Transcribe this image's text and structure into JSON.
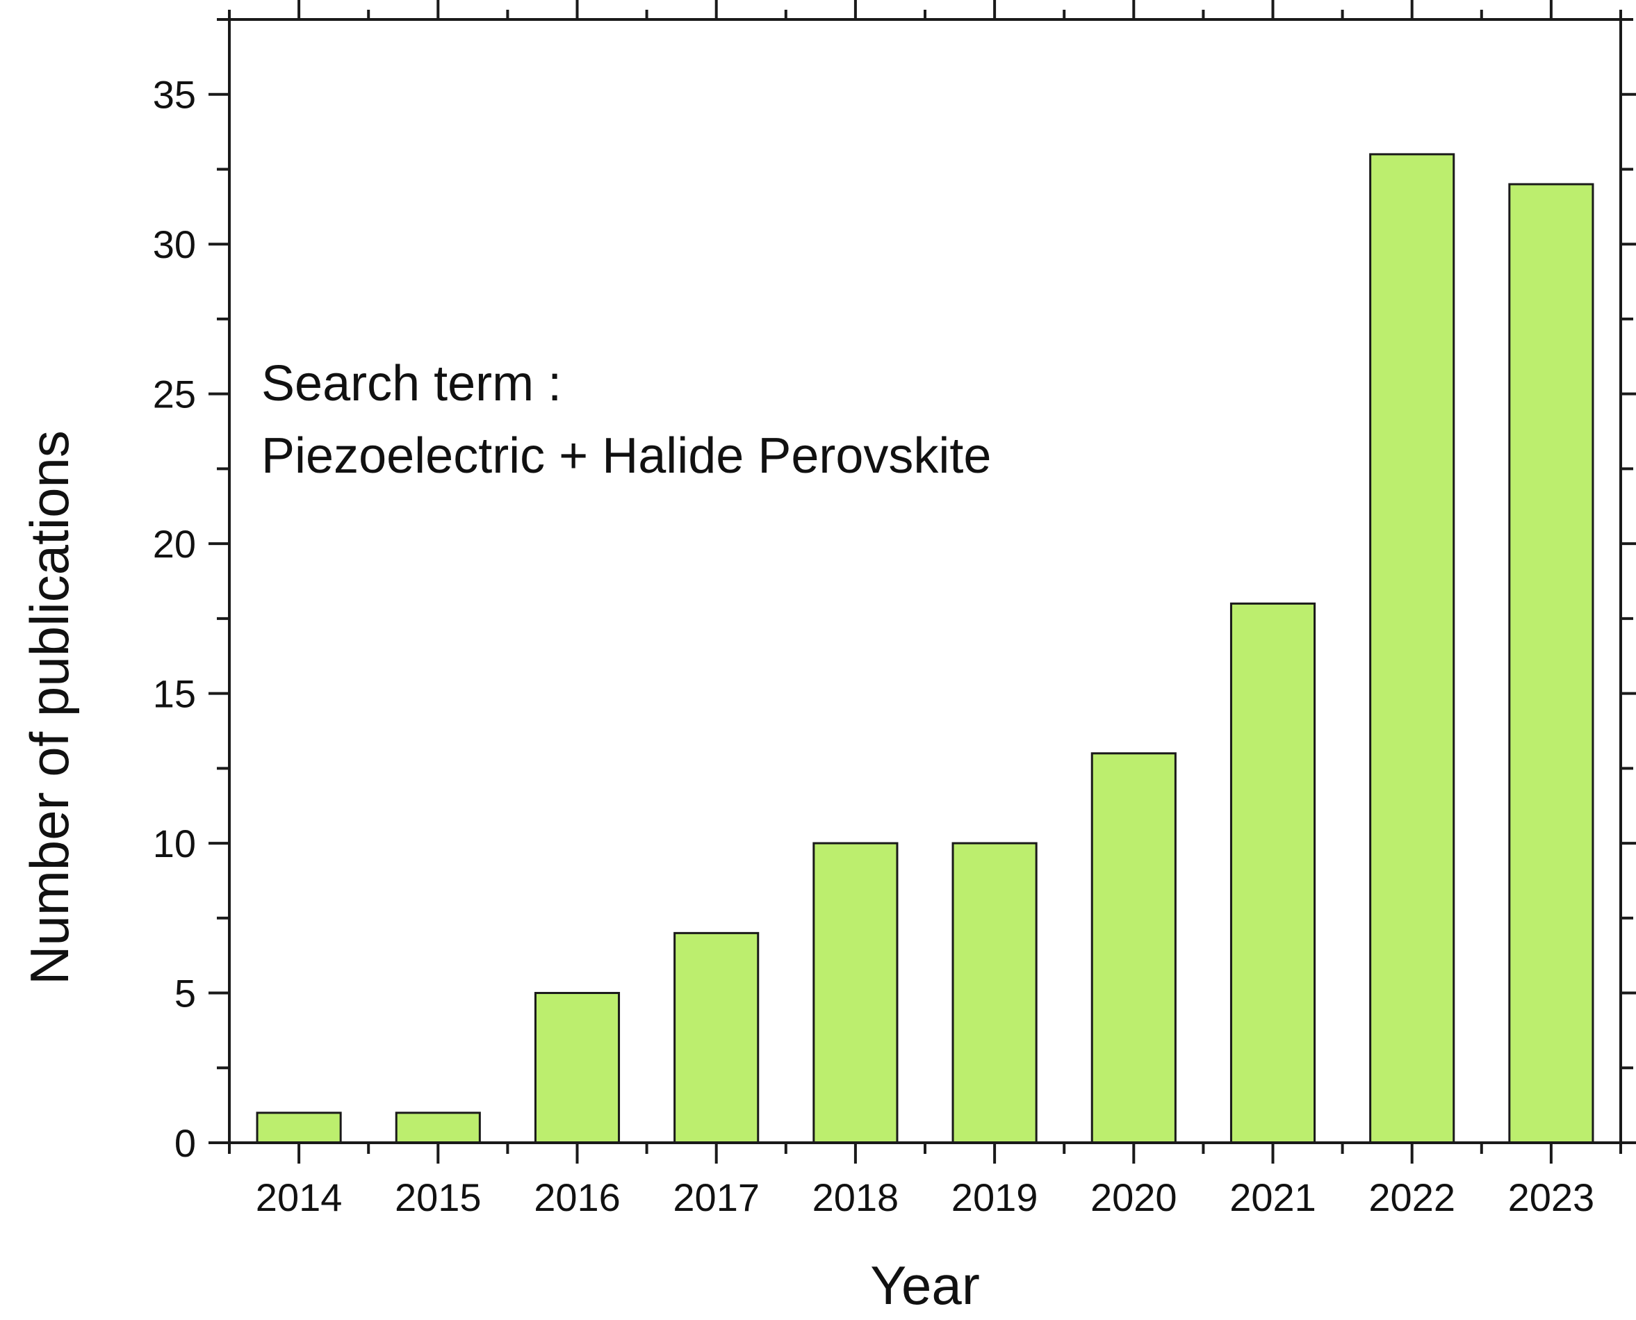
{
  "chart_data": {
    "type": "bar",
    "xlabel": "Year",
    "ylabel": "Number of publications",
    "categories": [
      "2014",
      "2015",
      "2016",
      "2017",
      "2018",
      "2019",
      "2020",
      "2021",
      "2022",
      "2023"
    ],
    "values": [
      1,
      1,
      5,
      7,
      10,
      10,
      13,
      18,
      33,
      32
    ],
    "ylim": [
      0,
      37.5
    ],
    "yticks": [
      "0",
      "5",
      "10",
      "15",
      "20",
      "25",
      "30",
      "35"
    ],
    "ytick_values": [
      0,
      5,
      10,
      15,
      20,
      25,
      30,
      35
    ],
    "annotation": {
      "line1": "Search term :",
      "line2": "Piezoelectric + Halide Perovskite"
    },
    "grid": false,
    "legend": "none",
    "colors": {
      "bar_fill": "#bcee6e",
      "bar_stroke": "#1a1a1a",
      "axis": "#1a1a1a",
      "text": "#111111"
    }
  }
}
